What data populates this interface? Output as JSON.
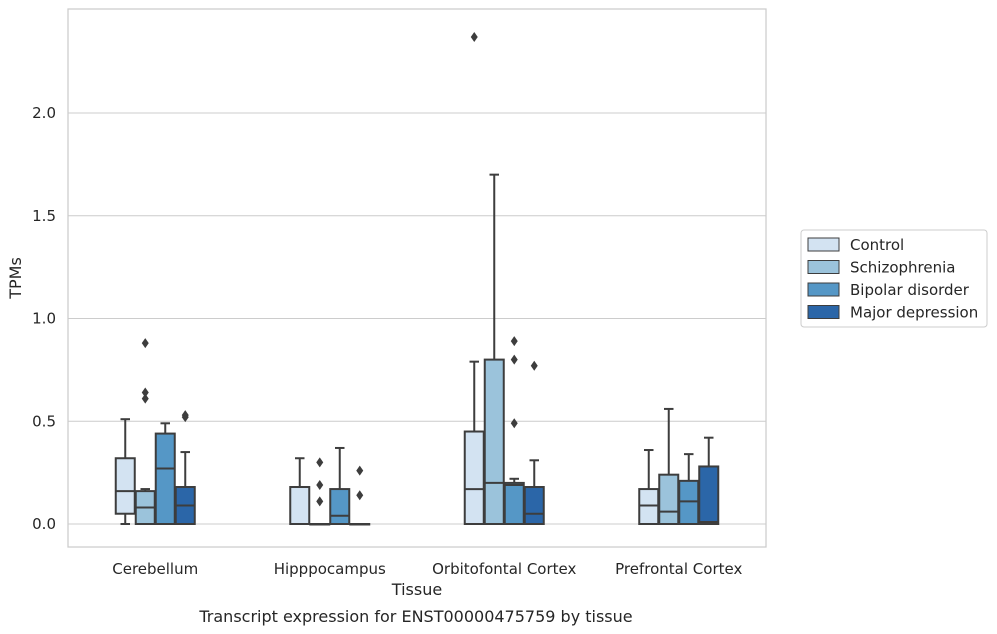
{
  "chart_data": {
    "type": "box",
    "title": "Transcript expression for ENST00000475759 by tissue",
    "xlabel": "Tissue",
    "ylabel": "TPMs",
    "ylim": [
      -0.115,
      2.5
    ],
    "yticks": [
      0.0,
      0.5,
      1.0,
      1.5,
      2.0
    ],
    "ytick_labels": [
      "0.0",
      "0.5",
      "1.0",
      "1.5",
      "2.0"
    ],
    "grid": true,
    "legend_position": "outside-right",
    "categories": [
      "Cerebellum",
      "Hipppocampus",
      "Orbitofontal Cortex",
      "Prefrontal Cortex"
    ],
    "series": [
      {
        "name": "Control",
        "color": "#d3e3f2",
        "boxes": [
          {
            "min": 0.0,
            "q1": 0.05,
            "median": 0.16,
            "q3": 0.32,
            "max": 0.51,
            "outliers": []
          },
          {
            "min": 0.0,
            "q1": 0.0,
            "median": 0.0,
            "q3": 0.18,
            "max": 0.32,
            "outliers": []
          },
          {
            "min": 0.0,
            "q1": 0.0,
            "median": 0.17,
            "q3": 0.45,
            "max": 0.79,
            "outliers": [
              2.37
            ]
          },
          {
            "min": 0.0,
            "q1": 0.0,
            "median": 0.09,
            "q3": 0.17,
            "max": 0.36,
            "outliers": []
          }
        ]
      },
      {
        "name": "Schizophrenia",
        "color": "#9bc3db",
        "boxes": [
          {
            "min": 0.0,
            "q1": 0.0,
            "median": 0.08,
            "q3": 0.16,
            "max": 0.17,
            "outliers": [
              0.61,
              0.64,
              0.88
            ]
          },
          {
            "min": 0.0,
            "q1": 0.0,
            "median": 0.0,
            "q3": 0.0,
            "max": 0.0,
            "outliers": [
              0.11,
              0.19,
              0.3
            ]
          },
          {
            "min": 0.0,
            "q1": 0.0,
            "median": 0.2,
            "q3": 0.8,
            "max": 1.7,
            "outliers": []
          },
          {
            "min": 0.0,
            "q1": 0.0,
            "median": 0.06,
            "q3": 0.24,
            "max": 0.56,
            "outliers": []
          }
        ]
      },
      {
        "name": "Bipolar disorder",
        "color": "#5597c6",
        "boxes": [
          {
            "min": 0.0,
            "q1": 0.0,
            "median": 0.27,
            "q3": 0.44,
            "max": 0.49,
            "outliers": []
          },
          {
            "min": 0.0,
            "q1": 0.0,
            "median": 0.04,
            "q3": 0.17,
            "max": 0.37,
            "outliers": []
          },
          {
            "min": 0.0,
            "q1": 0.0,
            "median": 0.19,
            "q3": 0.2,
            "max": 0.22,
            "outliers": [
              0.49,
              0.8,
              0.89
            ]
          },
          {
            "min": 0.0,
            "q1": 0.0,
            "median": 0.11,
            "q3": 0.21,
            "max": 0.34,
            "outliers": []
          }
        ]
      },
      {
        "name": "Major depression",
        "color": "#2b66a8",
        "boxes": [
          {
            "min": 0.0,
            "q1": 0.0,
            "median": 0.09,
            "q3": 0.18,
            "max": 0.35,
            "outliers": [
              0.52,
              0.53
            ]
          },
          {
            "min": 0.0,
            "q1": 0.0,
            "median": 0.0,
            "q3": 0.0,
            "max": 0.0,
            "outliers": [
              0.14,
              0.26
            ]
          },
          {
            "min": 0.0,
            "q1": 0.0,
            "median": 0.05,
            "q3": 0.18,
            "max": 0.31,
            "outliers": [
              0.77
            ]
          },
          {
            "min": 0.0,
            "q1": 0.0,
            "median": 0.01,
            "q3": 0.28,
            "max": 0.42,
            "outliers": []
          }
        ]
      }
    ]
  }
}
